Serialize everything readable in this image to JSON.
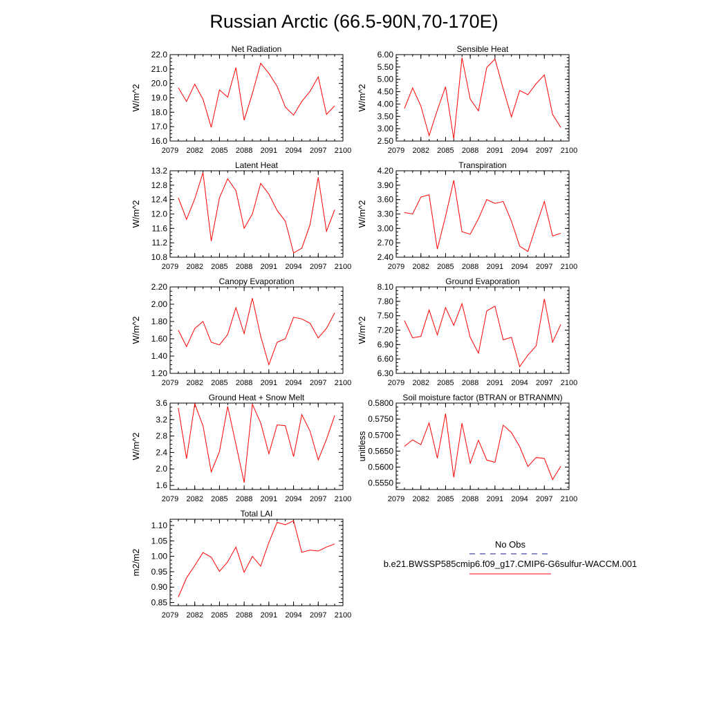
{
  "title": "Russian Arctic (66.5-90N,70-170E)",
  "colors": {
    "series": "#ff0000",
    "obs": "#1a1a8c",
    "axis": "#000000"
  },
  "legend": {
    "obs_label": "No Obs",
    "model_label": "b.e21.BWSSP585cmip6.f09_g17.CMIP6-G6sulfur-WACCM.001"
  },
  "chart_data": [
    {
      "type": "line",
      "title": "Net Radiation",
      "ylabel": "W/m^2",
      "xlim": [
        2079,
        2100
      ],
      "ylim": [
        16.0,
        22.0
      ],
      "decimals": 1,
      "xticks": [
        2079,
        2082,
        2085,
        2088,
        2091,
        2094,
        2097,
        2100
      ],
      "yticks": [
        16.0,
        17.0,
        18.0,
        19.0,
        20.0,
        21.0,
        22.0
      ],
      "x": [
        2080,
        2081,
        2082,
        2083,
        2084,
        2085,
        2086,
        2087,
        2088,
        2089,
        2090,
        2091,
        2092,
        2093,
        2094,
        2095,
        2096,
        2097,
        2098,
        2099
      ],
      "values": [
        19.7,
        18.75,
        19.95,
        18.9,
        16.95,
        19.55,
        19.05,
        21.1,
        17.45,
        19.3,
        21.4,
        20.7,
        19.8,
        18.35,
        17.8,
        18.75,
        19.45,
        20.45,
        17.85,
        18.45
      ]
    },
    {
      "type": "line",
      "title": "Sensible Heat",
      "ylabel": "W/m^2",
      "xlim": [
        2079,
        2100
      ],
      "ylim": [
        2.5,
        6.0
      ],
      "decimals": 2,
      "xticks": [
        2079,
        2082,
        2085,
        2088,
        2091,
        2094,
        2097,
        2100
      ],
      "yticks": [
        2.5,
        3.0,
        3.5,
        4.0,
        4.5,
        5.0,
        5.5,
        6.0
      ],
      "x": [
        2080,
        2081,
        2082,
        2083,
        2084,
        2085,
        2086,
        2087,
        2088,
        2089,
        2090,
        2091,
        2092,
        2093,
        2094,
        2095,
        2096,
        2097,
        2098,
        2099
      ],
      "values": [
        3.82,
        4.65,
        3.92,
        2.72,
        3.75,
        4.7,
        2.58,
        5.88,
        4.2,
        3.72,
        5.48,
        5.82,
        4.62,
        3.48,
        4.55,
        4.38,
        4.82,
        5.18,
        3.58,
        3.05
      ]
    },
    {
      "type": "line",
      "title": "Latent Heat",
      "ylabel": "W/m^2",
      "xlim": [
        2079,
        2100
      ],
      "ylim": [
        10.8,
        13.2
      ],
      "decimals": 1,
      "xticks": [
        2079,
        2082,
        2085,
        2088,
        2091,
        2094,
        2097,
        2100
      ],
      "yticks": [
        10.8,
        11.2,
        11.6,
        12.0,
        12.4,
        12.8,
        13.2
      ],
      "x": [
        2080,
        2081,
        2082,
        2083,
        2084,
        2085,
        2086,
        2087,
        2088,
        2089,
        2090,
        2091,
        2092,
        2093,
        2094,
        2095,
        2096,
        2097,
        2098,
        2099
      ],
      "values": [
        12.45,
        11.85,
        12.42,
        13.15,
        11.25,
        12.45,
        12.98,
        12.65,
        11.6,
        12.0,
        12.85,
        12.55,
        12.1,
        11.8,
        10.92,
        11.05,
        11.7,
        13.02,
        11.52,
        12.12
      ]
    },
    {
      "type": "line",
      "title": "Transpiration",
      "ylabel": "W/m^2",
      "xlim": [
        2079,
        2100
      ],
      "ylim": [
        2.4,
        4.2
      ],
      "decimals": 2,
      "xticks": [
        2079,
        2082,
        2085,
        2088,
        2091,
        2094,
        2097,
        2100
      ],
      "yticks": [
        2.4,
        2.7,
        3.0,
        3.3,
        3.6,
        3.9,
        4.2
      ],
      "x": [
        2080,
        2081,
        2082,
        2083,
        2084,
        2085,
        2086,
        2087,
        2088,
        2089,
        2090,
        2091,
        2092,
        2093,
        2094,
        2095,
        2096,
        2097,
        2098,
        2099
      ],
      "values": [
        3.33,
        3.3,
        3.65,
        3.7,
        2.57,
        3.25,
        4.0,
        2.93,
        2.88,
        3.2,
        3.6,
        3.52,
        3.56,
        3.15,
        2.63,
        2.52,
        3.05,
        3.56,
        2.84,
        2.9
      ]
    },
    {
      "type": "line",
      "title": "Canopy Evaporation",
      "ylabel": "W/m^2",
      "xlim": [
        2079,
        2100
      ],
      "ylim": [
        1.2,
        2.2
      ],
      "decimals": 2,
      "xticks": [
        2079,
        2082,
        2085,
        2088,
        2091,
        2094,
        2097,
        2100
      ],
      "yticks": [
        1.2,
        1.4,
        1.6,
        1.8,
        2.0,
        2.2
      ],
      "x": [
        2080,
        2081,
        2082,
        2083,
        2084,
        2085,
        2086,
        2087,
        2088,
        2089,
        2090,
        2091,
        2092,
        2093,
        2094,
        2095,
        2096,
        2097,
        2098,
        2099
      ],
      "values": [
        1.7,
        1.51,
        1.72,
        1.8,
        1.56,
        1.53,
        1.65,
        1.96,
        1.66,
        2.07,
        1.63,
        1.3,
        1.56,
        1.6,
        1.85,
        1.83,
        1.78,
        1.61,
        1.72,
        1.9
      ]
    },
    {
      "type": "line",
      "title": "Ground Evaporation",
      "ylabel": "W/m^2",
      "xlim": [
        2079,
        2100
      ],
      "ylim": [
        6.3,
        8.1
      ],
      "decimals": 2,
      "xticks": [
        2079,
        2082,
        2085,
        2088,
        2091,
        2094,
        2097,
        2100
      ],
      "yticks": [
        6.3,
        6.6,
        6.9,
        7.2,
        7.5,
        7.8,
        8.1
      ],
      "x": [
        2080,
        2081,
        2082,
        2083,
        2084,
        2085,
        2086,
        2087,
        2088,
        2089,
        2090,
        2091,
        2092,
        2093,
        2094,
        2095,
        2096,
        2097,
        2098,
        2099
      ],
      "values": [
        7.4,
        7.04,
        7.07,
        7.62,
        7.1,
        7.67,
        7.3,
        7.75,
        7.05,
        6.72,
        7.6,
        7.7,
        7.0,
        7.05,
        6.44,
        6.68,
        6.87,
        7.85,
        6.95,
        7.32
      ]
    },
    {
      "type": "line",
      "title": "Ground Heat + Snow Melt",
      "ylabel": "W/m^2",
      "xlim": [
        2079,
        2100
      ],
      "ylim": [
        1.5,
        3.6
      ],
      "decimals": 1,
      "xticks": [
        2079,
        2082,
        2085,
        2088,
        2091,
        2094,
        2097,
        2100
      ],
      "yticks": [
        1.6,
        2.0,
        2.4,
        2.8,
        3.2,
        3.6
      ],
      "x": [
        2080,
        2081,
        2082,
        2083,
        2084,
        2085,
        2086,
        2087,
        2088,
        2089,
        2090,
        2091,
        2092,
        2093,
        2094,
        2095,
        2096,
        2097,
        2098,
        2099
      ],
      "values": [
        3.48,
        2.25,
        3.58,
        3.05,
        1.93,
        2.42,
        3.52,
        2.6,
        1.67,
        3.57,
        3.12,
        2.37,
        3.07,
        3.05,
        2.3,
        3.32,
        2.92,
        2.22,
        2.72,
        3.3
      ]
    },
    {
      "type": "line",
      "title": "Soil moisture factor (BTRAN or BTRANMN)",
      "ylabel": "unitless",
      "xlim": [
        2079,
        2100
      ],
      "ylim": [
        0.553,
        0.58
      ],
      "decimals": 4,
      "xticks": [
        2079,
        2082,
        2085,
        2088,
        2091,
        2094,
        2097,
        2100
      ],
      "yticks": [
        0.555,
        0.56,
        0.565,
        0.57,
        0.575,
        0.58
      ],
      "x": [
        2080,
        2081,
        2082,
        2083,
        2084,
        2085,
        2086,
        2087,
        2088,
        2089,
        2090,
        2091,
        2092,
        2093,
        2094,
        2095,
        2096,
        2097,
        2098,
        2099
      ],
      "values": [
        0.5665,
        0.5685,
        0.567,
        0.5738,
        0.5628,
        0.5767,
        0.5568,
        0.5737,
        0.5612,
        0.5684,
        0.5622,
        0.5615,
        0.5731,
        0.5708,
        0.5664,
        0.5602,
        0.563,
        0.5627,
        0.5561,
        0.5603
      ]
    },
    {
      "type": "line",
      "title": "Total LAI",
      "ylabel": "m2/m2",
      "xlim": [
        2079,
        2100
      ],
      "ylim": [
        0.84,
        1.12
      ],
      "decimals": 2,
      "xticks": [
        2079,
        2082,
        2085,
        2088,
        2091,
        2094,
        2097,
        2100
      ],
      "yticks": [
        0.85,
        0.9,
        0.95,
        1.0,
        1.05,
        1.1
      ],
      "x": [
        2080,
        2081,
        2082,
        2083,
        2084,
        2085,
        2086,
        2087,
        2088,
        2089,
        2090,
        2091,
        2092,
        2093,
        2094,
        2095,
        2096,
        2097,
        2098,
        2099
      ],
      "values": [
        0.868,
        0.93,
        0.97,
        1.012,
        0.997,
        0.951,
        0.982,
        1.03,
        0.948,
        1.0,
        0.968,
        1.045,
        1.11,
        1.102,
        1.115,
        1.013,
        1.02,
        1.017,
        1.03,
        1.04
      ]
    }
  ]
}
